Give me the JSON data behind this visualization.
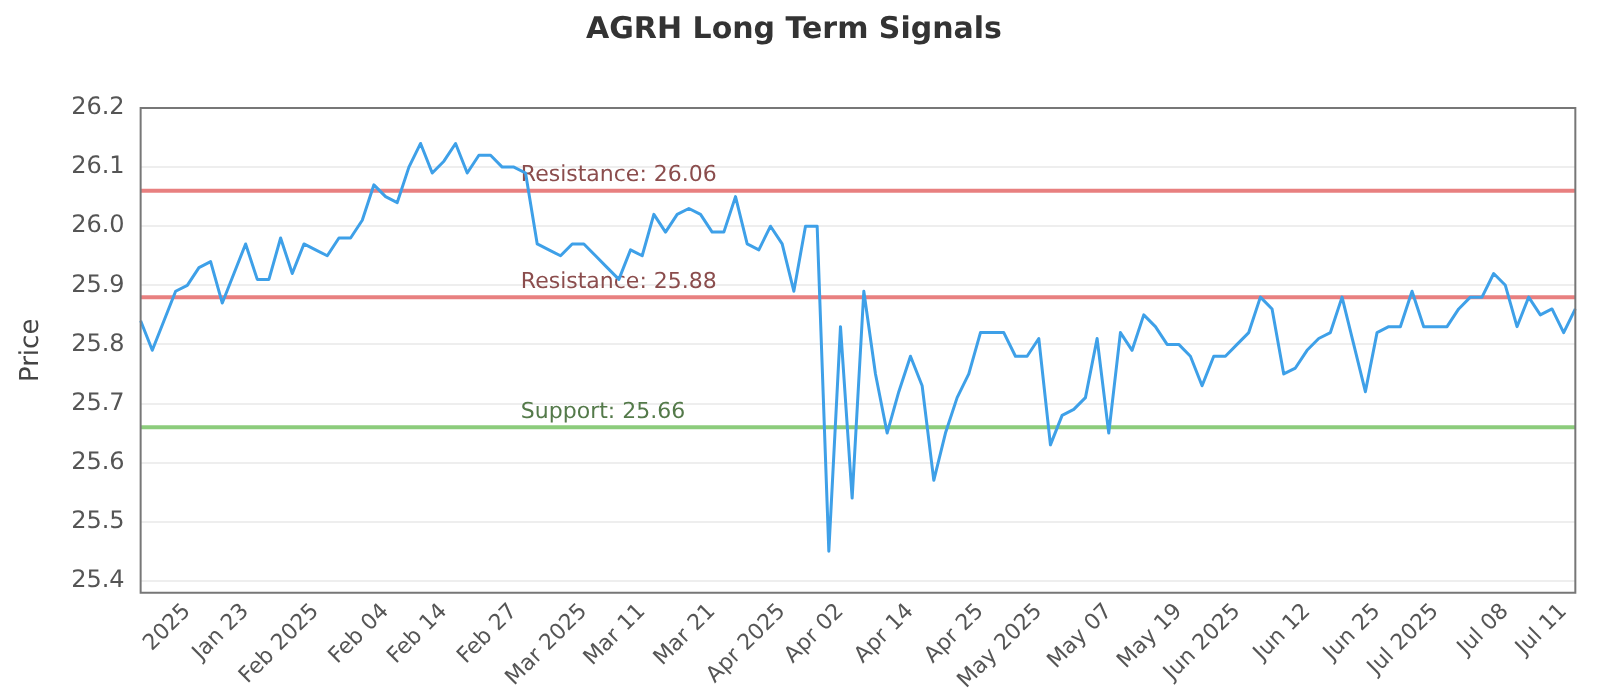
{
  "chart_data": {
    "type": "line",
    "title": "AGRH Long Term Signals",
    "ylabel": "Price",
    "categories": [
      null,
      null,
      null,
      null,
      "2025",
      null,
      null,
      null,
      null,
      "Jan 23",
      null,
      null,
      null,
      null,
      null,
      "Feb 2025",
      null,
      null,
      null,
      null,
      null,
      "Feb 04",
      null,
      null,
      null,
      null,
      "Feb 14",
      null,
      null,
      null,
      null,
      null,
      "Feb 27",
      null,
      null,
      null,
      null,
      null,
      "Mar 2025",
      null,
      null,
      null,
      null,
      "Mar 11",
      null,
      null,
      null,
      null,
      null,
      "Mar 21",
      null,
      null,
      null,
      null,
      null,
      "Apr 2025",
      null,
      null,
      null,
      null,
      "Apr 02",
      null,
      null,
      null,
      null,
      null,
      "Apr 14",
      null,
      null,
      null,
      null,
      null,
      "Apr 25",
      null,
      null,
      null,
      null,
      "May 2025",
      null,
      null,
      null,
      null,
      null,
      "May 07",
      null,
      null,
      null,
      null,
      null,
      "May 19",
      null,
      null,
      null,
      null,
      "Jun 2025",
      null,
      null,
      null,
      null,
      null,
      "Jun 12",
      null,
      null,
      null,
      null,
      null,
      "Jun 25",
      null,
      null,
      null,
      null,
      "Jul 2025",
      null,
      null,
      null,
      null,
      null,
      "Jul 08",
      null,
      null,
      null,
      null,
      "Jul 11",
      null
    ],
    "series": [
      {
        "color": "#3ea0e8",
        "values": [
          25.84,
          25.79,
          25.84,
          25.89,
          25.9,
          25.93,
          25.94,
          25.87,
          25.92,
          25.97,
          25.91,
          25.91,
          25.98,
          25.92,
          25.97,
          25.96,
          25.95,
          25.98,
          25.98,
          26.01,
          26.07,
          26.05,
          26.04,
          26.1,
          26.14,
          26.09,
          26.11,
          26.14,
          26.09,
          26.12,
          26.12,
          26.1,
          26.1,
          26.09,
          25.97,
          25.96,
          25.95,
          25.97,
          25.97,
          25.95,
          25.93,
          25.91,
          25.96,
          25.95,
          26.02,
          25.99,
          26.02,
          26.03,
          26.02,
          25.99,
          25.99,
          26.05,
          25.97,
          25.96,
          26.0,
          25.97,
          25.89,
          26.0,
          26.0,
          25.45,
          25.83,
          25.54,
          25.89,
          25.75,
          25.65,
          25.72,
          25.78,
          25.73,
          25.57,
          25.65,
          25.71,
          25.75,
          25.82,
          25.82,
          25.82,
          25.78,
          25.78,
          25.81,
          25.63,
          25.68,
          25.69,
          25.71,
          25.81,
          25.65,
          25.82,
          25.79,
          25.85,
          25.83,
          25.8,
          25.8,
          25.78,
          25.73,
          25.78,
          25.78,
          25.8,
          25.82,
          25.88,
          25.86,
          25.75,
          25.76,
          25.79,
          25.81,
          25.82,
          25.88,
          25.8,
          25.72,
          25.82,
          25.83,
          25.83,
          25.89,
          25.83,
          25.83,
          25.83,
          25.86,
          25.88,
          25.88,
          25.92,
          25.9,
          25.83,
          25.88,
          25.85,
          25.86,
          25.82,
          25.86
        ]
      }
    ],
    "ylim": [
      25.38,
      26.2
    ],
    "yticks": [
      25.4,
      25.5,
      25.6,
      25.7,
      25.8,
      25.9,
      {
        "value": 26,
        "label": "26.0"
      },
      26.1,
      26.2
    ],
    "ref_lines": [
      {
        "axis": "y",
        "value": 26.06,
        "label": "Resistance: 26.06",
        "color": "#e88080"
      },
      {
        "axis": "y",
        "value": 25.88,
        "label": "Resistance: 25.88",
        "color": "#e88080"
      },
      {
        "axis": "y",
        "value": 25.66,
        "label": "Support: 25.66",
        "color": "#8ccc7c"
      }
    ],
    "grid": "y",
    "legend": false,
    "marker": "none",
    "line_style": "solid"
  }
}
